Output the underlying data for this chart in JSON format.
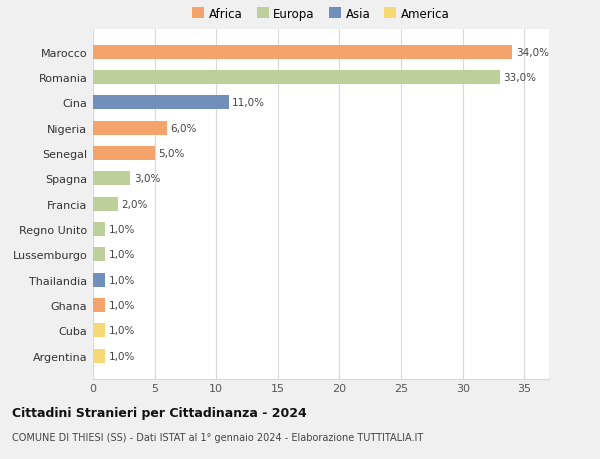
{
  "countries": [
    "Marocco",
    "Romania",
    "Cina",
    "Nigeria",
    "Senegal",
    "Spagna",
    "Francia",
    "Regno Unito",
    "Lussemburgo",
    "Thailandia",
    "Ghana",
    "Cuba",
    "Argentina"
  ],
  "values": [
    34.0,
    33.0,
    11.0,
    6.0,
    5.0,
    3.0,
    2.0,
    1.0,
    1.0,
    1.0,
    1.0,
    1.0,
    1.0
  ],
  "continents": [
    "Africa",
    "Europa",
    "Asia",
    "Africa",
    "Africa",
    "Europa",
    "Europa",
    "Europa",
    "Europa",
    "Asia",
    "Africa",
    "America",
    "America"
  ],
  "colors": {
    "Africa": "#F4A46A",
    "Europa": "#BDCF9A",
    "Asia": "#7090BB",
    "America": "#F5D878"
  },
  "legend_order": [
    "Africa",
    "Europa",
    "Asia",
    "America"
  ],
  "title": "Cittadini Stranieri per Cittadinanza - 2024",
  "subtitle": "COMUNE DI THIESI (SS) - Dati ISTAT al 1° gennaio 2024 - Elaborazione TUTTITALIA.IT",
  "xlim": [
    0,
    37
  ],
  "xticks": [
    0,
    5,
    10,
    15,
    20,
    25,
    30,
    35
  ],
  "background_color": "#f0f0f0",
  "bar_background": "#ffffff",
  "grid_color": "#d8d8d8",
  "bar_height": 0.55
}
